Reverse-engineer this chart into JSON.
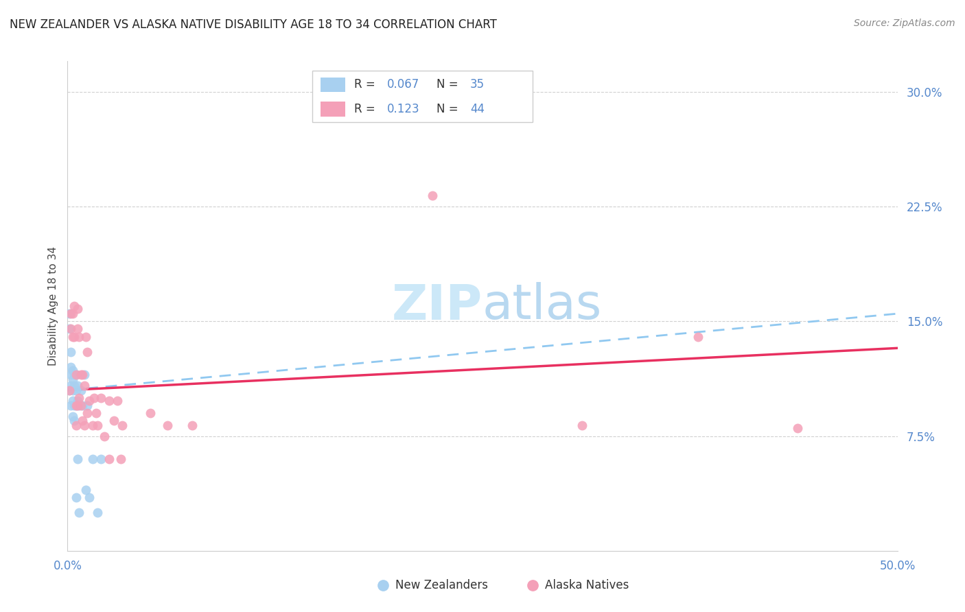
{
  "title": "NEW ZEALANDER VS ALASKA NATIVE DISABILITY AGE 18 TO 34 CORRELATION CHART",
  "source": "Source: ZipAtlas.com",
  "ylabel": "Disability Age 18 to 34",
  "xlim": [
    0.0,
    0.5
  ],
  "ylim": [
    0.0,
    0.32
  ],
  "color_blue": "#a8d0f0",
  "color_pink": "#f4a0b8",
  "trend_blue_color": "#90c8f0",
  "trend_pink_color": "#e83060",
  "watermark_color": "#cce8f8",
  "nz_x": [
    0.001,
    0.001,
    0.001,
    0.002,
    0.002,
    0.002,
    0.002,
    0.002,
    0.003,
    0.003,
    0.003,
    0.003,
    0.003,
    0.004,
    0.004,
    0.004,
    0.004,
    0.005,
    0.005,
    0.005,
    0.005,
    0.006,
    0.006,
    0.006,
    0.007,
    0.007,
    0.008,
    0.009,
    0.01,
    0.011,
    0.012,
    0.013,
    0.015,
    0.018,
    0.02
  ],
  "nz_y": [
    0.155,
    0.145,
    0.105,
    0.13,
    0.12,
    0.115,
    0.108,
    0.095,
    0.118,
    0.112,
    0.105,
    0.098,
    0.088,
    0.115,
    0.108,
    0.095,
    0.085,
    0.115,
    0.105,
    0.095,
    0.035,
    0.108,
    0.098,
    0.06,
    0.095,
    0.025,
    0.105,
    0.095,
    0.115,
    0.04,
    0.095,
    0.035,
    0.06,
    0.025,
    0.06
  ],
  "an_x": [
    0.001,
    0.002,
    0.002,
    0.003,
    0.003,
    0.004,
    0.004,
    0.005,
    0.005,
    0.005,
    0.006,
    0.006,
    0.006,
    0.007,
    0.007,
    0.008,
    0.008,
    0.009,
    0.009,
    0.01,
    0.01,
    0.011,
    0.012,
    0.012,
    0.013,
    0.015,
    0.016,
    0.017,
    0.018,
    0.02,
    0.022,
    0.025,
    0.025,
    0.028,
    0.03,
    0.032,
    0.033,
    0.05,
    0.06,
    0.075,
    0.22,
    0.31,
    0.38,
    0.44
  ],
  "an_y": [
    0.105,
    0.155,
    0.145,
    0.155,
    0.14,
    0.16,
    0.14,
    0.115,
    0.095,
    0.082,
    0.158,
    0.145,
    0.095,
    0.14,
    0.1,
    0.115,
    0.095,
    0.115,
    0.085,
    0.108,
    0.082,
    0.14,
    0.13,
    0.09,
    0.098,
    0.082,
    0.1,
    0.09,
    0.082,
    0.1,
    0.075,
    0.098,
    0.06,
    0.085,
    0.098,
    0.06,
    0.082,
    0.09,
    0.082,
    0.082,
    0.232,
    0.082,
    0.14,
    0.08
  ],
  "nz_R": 0.067,
  "nz_N": 35,
  "an_R": 0.123,
  "an_N": 44
}
